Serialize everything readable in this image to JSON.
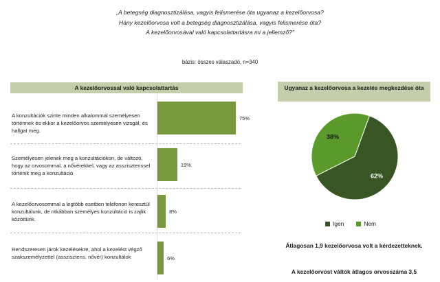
{
  "questions": [
    "„A betegség diagnosztizálása, vagyis felismerése óta ugyanaz a kezelőorvosa?",
    "Hány kezelőorvosa volt a betegség diagnosztizálása, vagyis felismerése óta?",
    "A kezelőorvosával való kapcsolattartásra  mi a jellemző?”"
  ],
  "basis": "bázis: összes válaszadó, n=340",
  "left_title": "A kezelőorvossal való kapcsolattartás",
  "right_title": "Ugyanaz a kezelőorvosa a kezelés megkezdése óta",
  "note_line1": "Átlagosan 1,9 kezelőorvosa volt a kérdezetteknek.",
  "note_line2": "A kezelőorvost váltók átlagos orvosszáma 3,5",
  "colors": {
    "bar": "#779a3e",
    "pie_dark": "#375623",
    "pie_light": "#5a9a2a"
  },
  "chart_data": [
    {
      "type": "bar",
      "orientation": "horizontal",
      "title": "A kezelőorvossal való kapcsolattartás",
      "categories": [
        "A konzultációk szinte minden alkalommal személyesen történnek és ekkor a kezelőorvos személyesen vizsgál, és hallgat meg.",
        "Személyesen jelenek meg a konzultációkon, de változó, hogy az orvosommal, a nővérekkel, vagy az asszisztenssel történik meg a konzultáció",
        "A kezelőorvosommal a legtöbb esetben telefonon keresztül konzultálunk, de ritkábban személyes konzultáció is zajlik közöttünk.",
        "Rendszeresen járok kezelésekre, ahol a kezelést végző szakszemélyzettel (asszisztens, nővér) konzultálok"
      ],
      "values": [
        75,
        19,
        8,
        6
      ],
      "labels": [
        "75%",
        "19%",
        "8%",
        "6%"
      ]
    },
    {
      "type": "pie",
      "title": "Ugyanaz a kezelőorvosa a kezelés megkezdése óta",
      "categories": [
        "Igen",
        "Nem"
      ],
      "values": [
        62,
        38
      ],
      "labels": [
        "62%",
        "38%"
      ],
      "legend": "bottom"
    }
  ]
}
